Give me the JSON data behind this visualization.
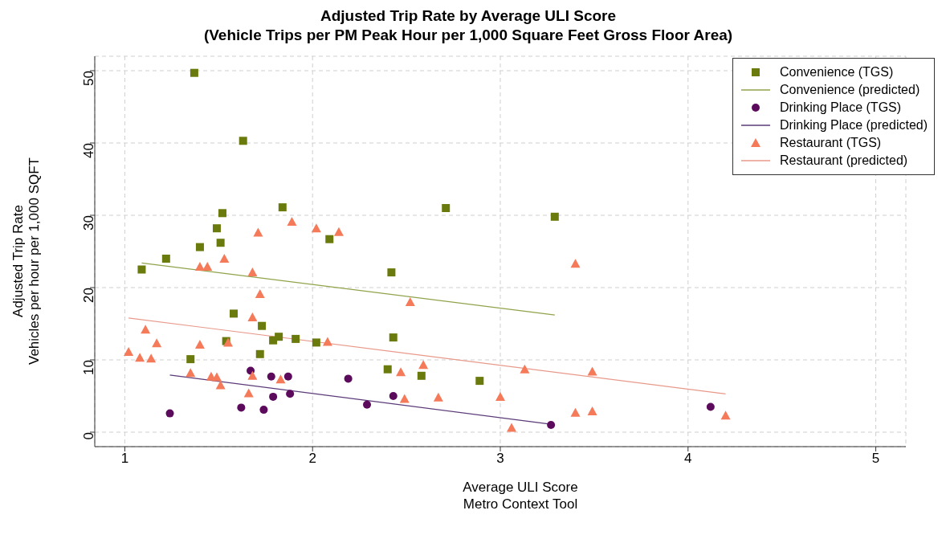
{
  "chart_data": {
    "type": "scatter",
    "title": "Adjusted Trip Rate by Average ULI Score\n(Vehicle Trips per PM Peak Hour per 1,000 Square Feet Gross Floor Area)",
    "xlabel": "Average ULI Score\nMetro Context Tool",
    "ylabel": "Adjusted Trip Rate\nVehicles per hour per 1,000 SQFT",
    "xlim": [
      0.84,
      5.16
    ],
    "xticks": [
      1,
      2,
      3,
      4,
      5
    ],
    "ylim": [
      -2,
      52
    ],
    "yticks": [
      0,
      10,
      20,
      30,
      40,
      50
    ],
    "grid": true,
    "legend": "top right",
    "series": [
      {
        "name": "Convenience (TGS)",
        "marker": "square",
        "color": "#6b7a0c",
        "x": [
          1.37,
          1.63,
          1.84,
          1.52,
          1.49,
          1.51,
          1.4,
          1.22,
          1.09,
          2.09,
          2.71,
          3.29,
          2.42,
          1.58,
          1.73,
          1.54,
          1.79,
          1.82,
          1.91,
          2.02,
          1.72,
          1.35,
          2.43,
          2.4,
          2.58,
          2.89
        ],
        "values": [
          49.7,
          40.3,
          31.1,
          30.3,
          28.2,
          26.2,
          25.6,
          24.0,
          22.5,
          26.7,
          31.0,
          29.8,
          22.1,
          16.4,
          14.7,
          12.6,
          12.7,
          13.2,
          12.9,
          12.4,
          10.8,
          10.1,
          13.1,
          8.7,
          7.8,
          7.1
        ]
      },
      {
        "name": "Convenience (predicted)",
        "type": "line",
        "color": "#8fa34a",
        "x": [
          1.09,
          3.29
        ],
        "values": [
          23.4,
          16.2
        ]
      },
      {
        "name": "Drinking Place (TGS)",
        "marker": "circle",
        "color": "#5c0a5c",
        "x": [
          1.24,
          1.62,
          1.67,
          1.74,
          1.78,
          1.79,
          1.87,
          1.88,
          2.19,
          2.29,
          2.43,
          3.27,
          4.12
        ],
        "values": [
          2.6,
          3.4,
          8.5,
          3.1,
          7.7,
          4.9,
          7.7,
          5.3,
          7.4,
          3.8,
          5.0,
          1.0,
          3.5
        ]
      },
      {
        "name": "Drinking Place (predicted)",
        "type": "line",
        "color": "#5a3a78",
        "x": [
          1.24,
          3.27
        ],
        "values": [
          7.9,
          1.1
        ]
      },
      {
        "name": "Restaurant (TGS)",
        "marker": "triangle",
        "color": "#f47a5a",
        "x": [
          1.02,
          1.08,
          1.11,
          1.14,
          1.17,
          1.35,
          1.4,
          1.4,
          1.44,
          1.53,
          1.46,
          1.49,
          1.51,
          1.55,
          1.66,
          1.68,
          1.68,
          1.72,
          1.68,
          1.71,
          1.89,
          2.02,
          2.14,
          1.83,
          2.08,
          2.52,
          2.47,
          2.49,
          2.59,
          2.67,
          3.0,
          3.06,
          3.13,
          3.4,
          3.4,
          3.49,
          3.49,
          4.2
        ],
        "values": [
          11.1,
          10.3,
          14.2,
          10.2,
          12.3,
          8.2,
          12.1,
          22.9,
          22.9,
          24.0,
          7.7,
          7.6,
          6.5,
          12.4,
          5.4,
          7.8,
          22.1,
          19.1,
          15.9,
          27.6,
          29.1,
          28.2,
          27.7,
          7.3,
          12.5,
          18.0,
          8.3,
          4.6,
          9.3,
          4.8,
          4.9,
          0.6,
          8.7,
          23.3,
          2.7,
          8.4,
          2.9,
          2.3
        ]
      },
      {
        "name": "Restaurant (predicted)",
        "type": "line",
        "color": "#e8998a",
        "x": [
          1.02,
          4.2
        ],
        "values": [
          15.8,
          5.3
        ]
      }
    ]
  }
}
